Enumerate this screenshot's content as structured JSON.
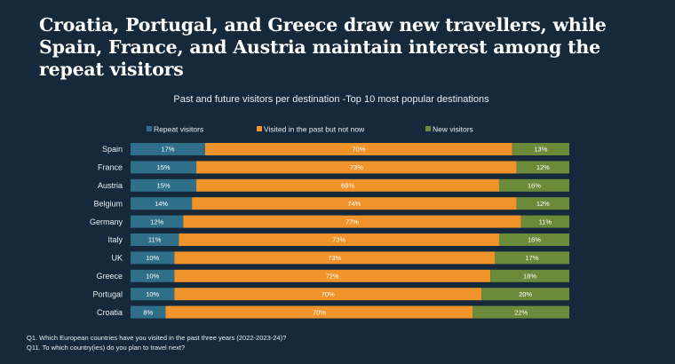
{
  "headline": "Croatia, Portugal, and Greece draw new travellers, while Spain, France, and Austria maintain interest among the repeat visitors",
  "footnotes": [
    "Q1. Which European countries have you visited in the past three years (2022-2023-24)?",
    "Q11. To which country(ies) do you plan to travel next?"
  ],
  "colors": {
    "repeat": "#2f6f8a",
    "past": "#f0932b",
    "new": "#6b8a3a",
    "background": "#15293a"
  },
  "chart_data": {
    "type": "bar",
    "orientation": "horizontal",
    "stacked": true,
    "title": "Past and future visitors per destination -Top 10 most popular destinations",
    "legend_position": "top",
    "xlim": [
      0,
      100
    ],
    "categories": [
      "Spain",
      "France",
      "Austria",
      "Belgium",
      "Germany",
      "Italy",
      "UK",
      "Greece",
      "Portugal",
      "Croatia"
    ],
    "series": [
      {
        "name": "Repeat visitors",
        "color": "#2f6f8a",
        "values": [
          17,
          15,
          15,
          14,
          12,
          11,
          10,
          10,
          10,
          8
        ]
      },
      {
        "name": "Visited in the past but not now",
        "color": "#f0932b",
        "values": [
          70,
          73,
          69,
          74,
          77,
          73,
          73,
          72,
          70,
          70
        ]
      },
      {
        "name": "New visitors",
        "color": "#6b8a3a",
        "values": [
          13,
          12,
          16,
          12,
          11,
          16,
          17,
          18,
          20,
          22
        ]
      }
    ]
  }
}
